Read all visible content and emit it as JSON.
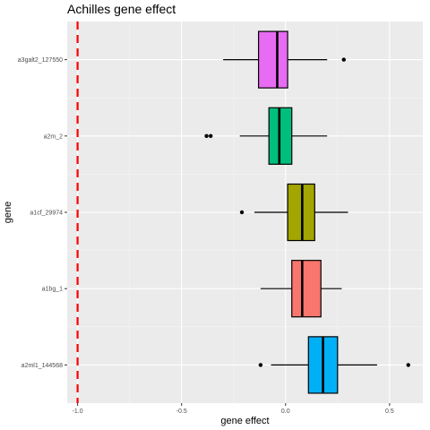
{
  "chart_data": {
    "type": "boxplot",
    "orientation": "horizontal",
    "title": "Achilles gene effect",
    "xlabel": "gene effect",
    "ylabel": "gene",
    "xlim": [
      -1.05,
      0.66
    ],
    "x_ticks": [
      {
        "value": -1.0,
        "label": "-1.0"
      },
      {
        "value": -0.5,
        "label": "-0.5"
      },
      {
        "value": 0.0,
        "label": "0.0"
      },
      {
        "value": 0.5,
        "label": "0.5"
      }
    ],
    "grid": true,
    "legend": "none",
    "reference_line": {
      "x": -1.0,
      "style": "dashed",
      "color": "#ff0000"
    },
    "series": [
      {
        "name": "a3galt2_127550",
        "color": "#e76bf3",
        "whisker_low": -0.3,
        "q1": -0.13,
        "median": -0.04,
        "q3": 0.01,
        "whisker_high": 0.2,
        "outliers": [
          0.28
        ]
      },
      {
        "name": "a2m_2",
        "color": "#00bf7d",
        "whisker_low": -0.22,
        "q1": -0.08,
        "median": -0.03,
        "q3": 0.03,
        "whisker_high": 0.2,
        "outliers": [
          -0.38,
          -0.36
        ]
      },
      {
        "name": "a1cf_29974",
        "color": "#a3a500",
        "whisker_low": -0.15,
        "q1": 0.01,
        "median": 0.08,
        "q3": 0.14,
        "whisker_high": 0.3,
        "outliers": [
          -0.21
        ]
      },
      {
        "name": "a1bg_1",
        "color": "#f8766d",
        "whisker_low": -0.12,
        "q1": 0.03,
        "median": 0.08,
        "q3": 0.17,
        "whisker_high": 0.27,
        "outliers": []
      },
      {
        "name": "a2ml1_144568",
        "color": "#00b0f6",
        "whisker_low": -0.07,
        "q1": 0.11,
        "median": 0.18,
        "q3": 0.25,
        "whisker_high": 0.44,
        "outliers": [
          -0.12,
          0.59
        ]
      }
    ]
  }
}
